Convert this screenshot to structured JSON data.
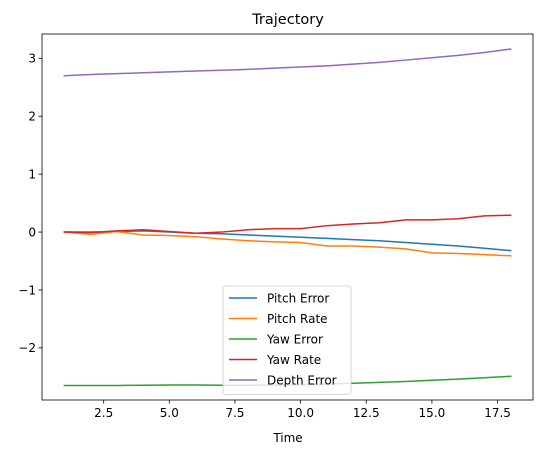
{
  "chart_data": {
    "type": "line",
    "title": "Trajectory",
    "xlabel": "Time",
    "ylabel": "",
    "xlim": [
      0.15,
      18.85
    ],
    "ylim": [
      -2.9,
      3.42
    ],
    "xticks": [
      2.5,
      5.0,
      7.5,
      10.0,
      12.5,
      15.0,
      17.5
    ],
    "xtick_labels": [
      "2.5",
      "5.0",
      "7.5",
      "10.0",
      "12.5",
      "15.0",
      "17.5"
    ],
    "yticks": [
      -2,
      -1,
      0,
      1,
      2,
      3
    ],
    "ytick_labels": [
      "−2",
      "−1",
      "0",
      "1",
      "2",
      "3"
    ],
    "legend_position": "lower-center",
    "x": [
      1,
      2,
      3,
      4,
      5,
      6,
      7,
      8,
      9,
      10,
      11,
      12,
      13,
      14,
      15,
      16,
      17,
      18
    ],
    "series": [
      {
        "name": "Pitch Error",
        "color": "#1f77b4",
        "values": [
          0.0,
          0.0,
          0.01,
          0.02,
          0.0,
          -0.02,
          -0.03,
          -0.05,
          -0.07,
          -0.09,
          -0.11,
          -0.13,
          -0.15,
          -0.18,
          -0.21,
          -0.24,
          -0.28,
          -0.32
        ]
      },
      {
        "name": "Pitch Rate",
        "color": "#ff7f0e",
        "values": [
          0.0,
          -0.04,
          0.01,
          -0.05,
          -0.06,
          -0.08,
          -0.12,
          -0.15,
          -0.17,
          -0.18,
          -0.24,
          -0.24,
          -0.26,
          -0.29,
          -0.36,
          -0.37,
          -0.39,
          -0.41
        ]
      },
      {
        "name": "Yaw Error",
        "color": "#2ca02c",
        "values": [
          -2.65,
          -2.65,
          -2.65,
          -2.645,
          -2.64,
          -2.64,
          -2.645,
          -2.645,
          -2.64,
          -2.635,
          -2.625,
          -2.61,
          -2.595,
          -2.58,
          -2.56,
          -2.54,
          -2.515,
          -2.49
        ]
      },
      {
        "name": "Yaw Rate",
        "color": "#d62728",
        "values": [
          0.0,
          -0.01,
          0.02,
          0.04,
          0.01,
          -0.02,
          0.0,
          0.04,
          0.06,
          0.06,
          0.11,
          0.14,
          0.16,
          0.21,
          0.21,
          0.23,
          0.28,
          0.29
        ]
      },
      {
        "name": "Depth Error",
        "color": "#9467bd",
        "values": [
          2.7,
          2.72,
          2.735,
          2.75,
          2.765,
          2.78,
          2.795,
          2.81,
          2.83,
          2.85,
          2.87,
          2.9,
          2.93,
          2.97,
          3.01,
          3.05,
          3.1,
          3.16
        ]
      }
    ]
  }
}
